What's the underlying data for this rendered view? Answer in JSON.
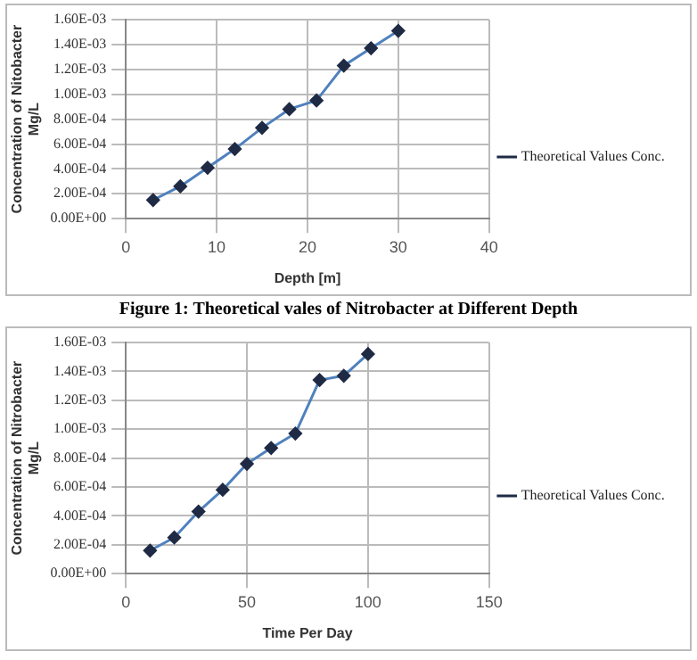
{
  "chart_data": [
    {
      "type": "line",
      "xlabel": "Depth [m]",
      "ylabel": "Concentration of Nitobacter Mg/L",
      "x": [
        3,
        6,
        9,
        12,
        15,
        18,
        21,
        24,
        27,
        30
      ],
      "series": [
        {
          "name": "Theoretical Values Conc.",
          "color": "#4f81bd",
          "values": [
            0.00015,
            0.00026,
            0.00041,
            0.00056,
            0.00073,
            0.00088,
            0.00095,
            0.00123,
            0.00137,
            0.00151
          ]
        }
      ],
      "xlim": [
        0,
        40
      ],
      "xticks": [
        0,
        10,
        20,
        30,
        40
      ],
      "ylim": [
        0,
        0.0016
      ],
      "yticks": [
        {
          "value": 0,
          "label": "0.00E+00"
        },
        {
          "value": 0.0002,
          "label": "2.00E-04"
        },
        {
          "value": 0.0004,
          "label": "4.00E-04"
        },
        {
          "value": 0.0006,
          "label": "6.00E-04"
        },
        {
          "value": 0.0008,
          "label": "8.00E-04"
        },
        {
          "value": 0.001,
          "label": "1.00E-03"
        },
        {
          "value": 0.0012,
          "label": "1.20E-03"
        },
        {
          "value": 0.0014,
          "label": "1.40E-03"
        },
        {
          "value": 0.0016,
          "label": "1.60E-03"
        }
      ],
      "grid": true,
      "legend": "right",
      "marker": "diamond",
      "line_style": "solid",
      "annotations": [
        "Figure 1: Theoretical vales of Nitrobacter at Different Depth"
      ]
    },
    {
      "type": "line",
      "xlabel": "Time Per Day",
      "ylabel": "Concentration of Nitrobacter Mg/L",
      "x": [
        10,
        20,
        30,
        40,
        50,
        60,
        70,
        80,
        90,
        100
      ],
      "series": [
        {
          "name": "Theoretical Values Conc.",
          "color": "#4f81bd",
          "values": [
            0.00016,
            0.00025,
            0.00043,
            0.00058,
            0.00076,
            0.00087,
            0.00097,
            0.00134,
            0.00137,
            0.00152
          ]
        }
      ],
      "xlim": [
        0,
        150
      ],
      "xticks": [
        0,
        50,
        100,
        150
      ],
      "ylim": [
        0,
        0.0016
      ],
      "yticks": [
        {
          "value": 0,
          "label": "0.00E+00"
        },
        {
          "value": 0.0002,
          "label": "2.00E-04"
        },
        {
          "value": 0.0004,
          "label": "4.00E-04"
        },
        {
          "value": 0.0006,
          "label": "6.00E-04"
        },
        {
          "value": 0.0008,
          "label": "8.00E-04"
        },
        {
          "value": 0.001,
          "label": "1.00E-03"
        },
        {
          "value": 0.0012,
          "label": "1.20E-03"
        },
        {
          "value": 0.0014,
          "label": "1.40E-03"
        },
        {
          "value": 0.0016,
          "label": "1.60E-03"
        }
      ],
      "grid": true,
      "legend": "right",
      "marker": "diamond",
      "line_style": "solid"
    }
  ]
}
